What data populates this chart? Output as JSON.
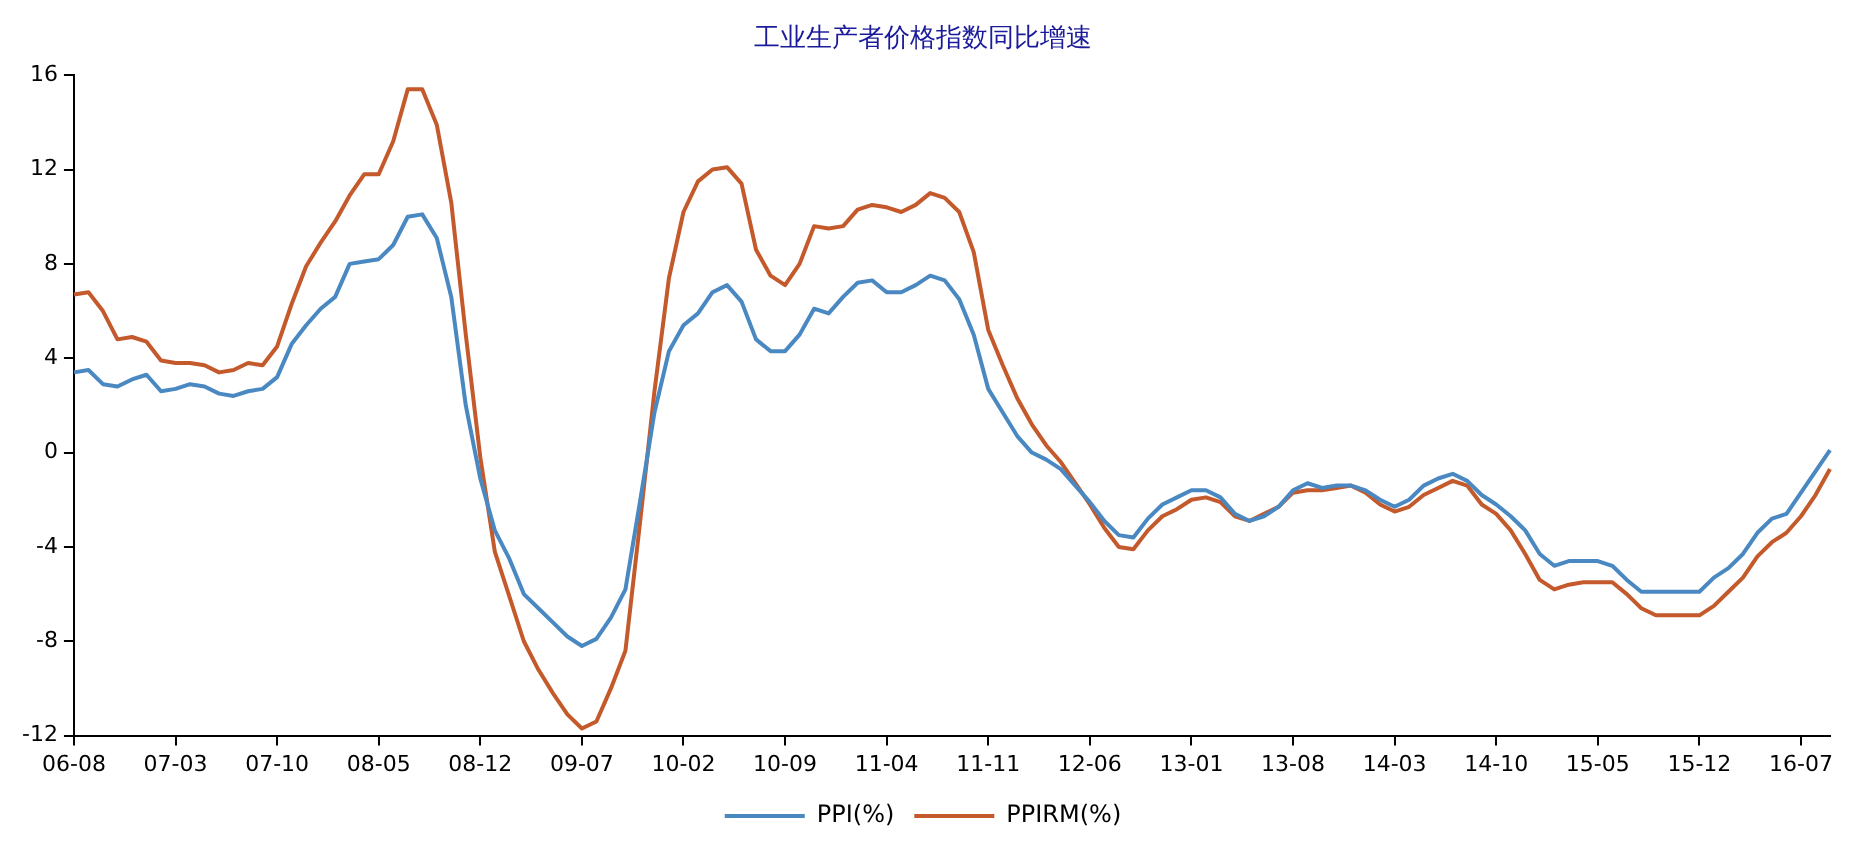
{
  "chart_data": {
    "type": "line",
    "title": "工业生产者价格指数同比增速",
    "categories": [
      "06-08",
      null,
      null,
      null,
      null,
      null,
      null,
      "07-03",
      null,
      null,
      null,
      null,
      null,
      null,
      "07-10",
      null,
      null,
      null,
      null,
      null,
      null,
      "08-05",
      null,
      null,
      null,
      null,
      null,
      null,
      "08-12",
      null,
      null,
      null,
      null,
      null,
      null,
      "09-07",
      null,
      null,
      null,
      null,
      null,
      null,
      "10-02",
      null,
      null,
      null,
      null,
      null,
      null,
      "10-09",
      null,
      null,
      null,
      null,
      null,
      null,
      "11-04",
      null,
      null,
      null,
      null,
      null,
      null,
      "11-11",
      null,
      null,
      null,
      null,
      null,
      null,
      "12-06",
      null,
      null,
      null,
      null,
      null,
      null,
      "13-01",
      null,
      null,
      null,
      null,
      null,
      null,
      "13-08",
      null,
      null,
      null,
      null,
      null,
      null,
      "14-03",
      null,
      null,
      null,
      null,
      null,
      null,
      "14-10",
      null,
      null,
      null,
      null,
      null,
      null,
      "15-05",
      null,
      null,
      null,
      null,
      null,
      null,
      "15-12",
      null,
      null,
      null,
      null,
      null,
      null,
      "16-07",
      null,
      null
    ],
    "series": [
      {
        "name": "PPI(%)",
        "color": "#4a88c2",
        "values": [
          3.4,
          3.5,
          2.9,
          2.8,
          3.1,
          3.3,
          2.6,
          2.7,
          2.9,
          2.8,
          2.5,
          2.4,
          2.6,
          2.7,
          3.2,
          4.6,
          5.4,
          6.1,
          6.6,
          8.0,
          8.1,
          8.2,
          8.8,
          10.0,
          10.1,
          9.1,
          6.6,
          2.0,
          -1.1,
          -3.3,
          -4.5,
          -6.0,
          -6.6,
          -7.2,
          -7.8,
          -8.2,
          -7.9,
          -7.0,
          -5.8,
          -2.1,
          1.7,
          4.3,
          5.4,
          5.9,
          6.8,
          7.1,
          6.4,
          4.8,
          4.3,
          4.3,
          5.0,
          6.1,
          5.9,
          6.6,
          7.2,
          7.3,
          6.8,
          6.8,
          7.1,
          7.5,
          7.3,
          6.5,
          5.0,
          2.7,
          1.7,
          0.7,
          0.0,
          -0.3,
          -0.7,
          -1.4,
          -2.1,
          -2.9,
          -3.5,
          -3.6,
          -2.8,
          -2.2,
          -1.9,
          -1.6,
          -1.6,
          -1.9,
          -2.6,
          -2.9,
          -2.7,
          -2.3,
          -1.6,
          -1.3,
          -1.5,
          -1.4,
          -1.4,
          -1.6,
          -2.0,
          -2.3,
          -2.0,
          -1.4,
          -1.1,
          -0.9,
          -1.2,
          -1.8,
          -2.2,
          -2.7,
          -3.3,
          -4.3,
          -4.8,
          -4.6,
          -4.6,
          -4.6,
          -4.8,
          -5.4,
          -5.9,
          -5.9,
          -5.9,
          -5.9,
          -5.9,
          -5.3,
          -4.9,
          -4.3,
          -3.4,
          -2.8,
          -2.6,
          -1.7,
          -0.8,
          0.1
        ]
      },
      {
        "name": "PPIRM(%)",
        "color": "#c45a2c",
        "values": [
          6.7,
          6.8,
          6.0,
          4.8,
          4.9,
          4.7,
          3.9,
          3.8,
          3.8,
          3.7,
          3.4,
          3.5,
          3.8,
          3.7,
          4.5,
          6.3,
          7.9,
          8.9,
          9.8,
          10.9,
          11.8,
          11.8,
          13.2,
          15.4,
          15.4,
          13.9,
          10.6,
          5.0,
          -0.2,
          -4.2,
          -6.1,
          -8.0,
          -9.2,
          -10.2,
          -11.1,
          -11.7,
          -11.4,
          -10.0,
          -8.4,
          -3.0,
          2.6,
          7.4,
          10.2,
          11.5,
          12.0,
          12.1,
          11.4,
          8.6,
          7.5,
          7.1,
          8.0,
          9.6,
          9.5,
          9.6,
          10.3,
          10.5,
          10.4,
          10.2,
          10.5,
          11.0,
          10.8,
          10.2,
          8.5,
          5.2,
          3.7,
          2.3,
          1.2,
          0.3,
          -0.4,
          -1.3,
          -2.2,
          -3.2,
          -4.0,
          -4.1,
          -3.3,
          -2.7,
          -2.4,
          -2.0,
          -1.9,
          -2.1,
          -2.7,
          -2.9,
          -2.6,
          -2.3,
          -1.7,
          -1.6,
          -1.6,
          -1.5,
          -1.4,
          -1.7,
          -2.2,
          -2.5,
          -2.3,
          -1.8,
          -1.5,
          -1.2,
          -1.4,
          -2.2,
          -2.6,
          -3.3,
          -4.3,
          -5.4,
          -5.8,
          -5.6,
          -5.5,
          -5.5,
          -5.5,
          -6.0,
          -6.6,
          -6.9,
          -6.9,
          -6.9,
          -6.9,
          -6.5,
          -5.9,
          -5.3,
          -4.4,
          -3.8,
          -3.4,
          -2.7,
          -1.8,
          -0.7
        ]
      }
    ],
    "ylim": [
      -12,
      16
    ],
    "yticks": [
      -12,
      -8,
      -4,
      0,
      4,
      8,
      12,
      16
    ],
    "grid": false,
    "legend": "bottom",
    "marker": "none",
    "line_style": "solid"
  }
}
